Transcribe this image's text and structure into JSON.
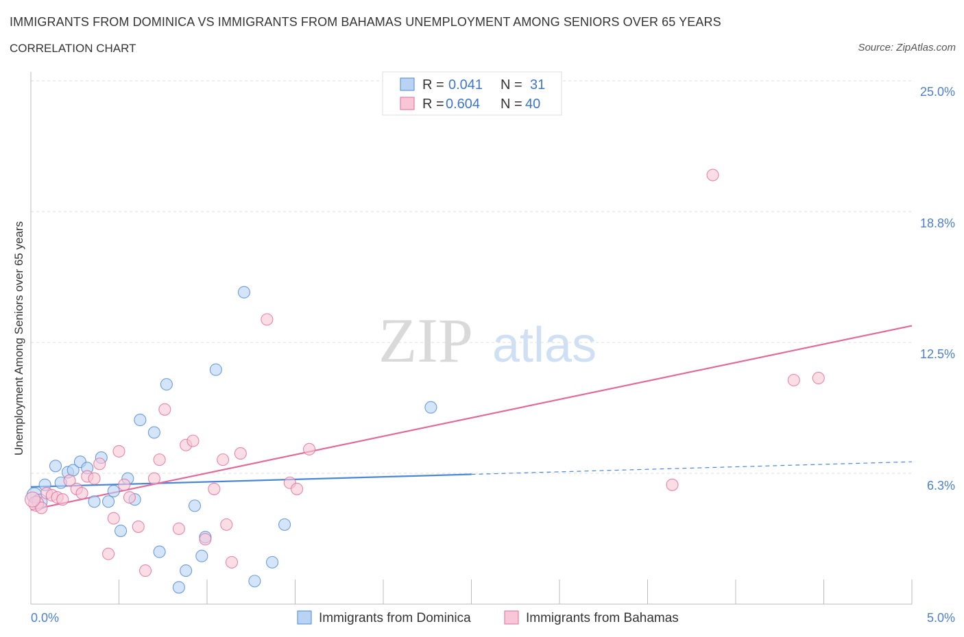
{
  "header": {
    "title": "IMMIGRANTS FROM DOMINICA VS IMMIGRANTS FROM BAHAMAS UNEMPLOYMENT AMONG SENIORS OVER 65 YEARS",
    "subtitle": "CORRELATION CHART",
    "source": "Source: ZipAtlas.com"
  },
  "watermark": {
    "zip": "ZIP",
    "atlas": "atlas"
  },
  "chart_data": {
    "type": "scatter",
    "title": "IMMIGRANTS FROM DOMINICA VS IMMIGRANTS FROM BAHAMAS UNEMPLOYMENT AMONG SENIORS OVER 65 YEARS",
    "xlabel": "",
    "ylabel": "Unemployment Among Seniors over 65 years",
    "xlim": [
      0,
      5
    ],
    "ylim": [
      0,
      25
    ],
    "x_tick_labels": [
      "0.0%",
      "5.0%"
    ],
    "y_tick_labels": [
      "6.3%",
      "12.5%",
      "18.8%",
      "25.0%"
    ],
    "y_ticks": [
      6.25,
      12.5,
      18.75,
      25.0
    ],
    "grid": true,
    "legend_position": "bottom",
    "stats_box": {
      "r_label": "R =",
      "n_label": "N =",
      "rows": [
        {
          "r": "0.041",
          "n": "31"
        },
        {
          "r": "0.604",
          "n": "40"
        }
      ]
    },
    "series": [
      {
        "name": "Immigrants from Dominica",
        "color": "#4a86d8",
        "fill": "#b9d3f5",
        "trend": {
          "x0": 0.0,
          "y0": 5.6,
          "x1": 2.5,
          "y1": 6.2,
          "dash_to_x": 5.0,
          "dash_to_y": 6.8
        },
        "points": [
          [
            0.02,
            5.2
          ],
          [
            0.08,
            5.7
          ],
          [
            0.14,
            6.6
          ],
          [
            0.17,
            5.8
          ],
          [
            0.21,
            6.3
          ],
          [
            0.24,
            6.4
          ],
          [
            0.28,
            6.8
          ],
          [
            0.32,
            6.5
          ],
          [
            0.36,
            4.9
          ],
          [
            0.4,
            7.0
          ],
          [
            0.44,
            4.9
          ],
          [
            0.47,
            5.4
          ],
          [
            0.51,
            3.5
          ],
          [
            0.55,
            6.0
          ],
          [
            0.59,
            5.0
          ],
          [
            0.62,
            8.8
          ],
          [
            0.7,
            8.2
          ],
          [
            0.73,
            2.5
          ],
          [
            0.77,
            10.5
          ],
          [
            0.84,
            0.8
          ],
          [
            0.88,
            1.6
          ],
          [
            0.93,
            4.7
          ],
          [
            0.97,
            2.3
          ],
          [
            0.99,
            3.2
          ],
          [
            1.05,
            11.2
          ],
          [
            1.21,
            14.9
          ],
          [
            1.27,
            1.1
          ],
          [
            1.37,
            2.0
          ],
          [
            1.44,
            3.8
          ],
          [
            2.27,
            9.4
          ],
          [
            0.05,
            4.9
          ]
        ]
      },
      {
        "name": "Immigrants from Bahamas",
        "color": "#e06b98",
        "fill": "#f8c6d6",
        "trend": {
          "x0": 0.0,
          "y0": 4.5,
          "x1": 5.0,
          "y1": 13.3
        },
        "points": [
          [
            0.03,
            4.8
          ],
          [
            0.06,
            4.6
          ],
          [
            0.09,
            5.3
          ],
          [
            0.12,
            5.2
          ],
          [
            0.15,
            5.1
          ],
          [
            0.18,
            5.0
          ],
          [
            0.22,
            5.9
          ],
          [
            0.26,
            5.5
          ],
          [
            0.29,
            5.3
          ],
          [
            0.32,
            6.1
          ],
          [
            0.36,
            6.0
          ],
          [
            0.39,
            6.7
          ],
          [
            0.44,
            2.4
          ],
          [
            0.47,
            4.1
          ],
          [
            0.5,
            7.3
          ],
          [
            0.53,
            5.7
          ],
          [
            0.56,
            5.1
          ],
          [
            0.61,
            3.7
          ],
          [
            0.65,
            1.6
          ],
          [
            0.7,
            6.0
          ],
          [
            0.73,
            6.9
          ],
          [
            0.76,
            9.3
          ],
          [
            0.84,
            3.6
          ],
          [
            0.88,
            7.6
          ],
          [
            0.92,
            7.8
          ],
          [
            0.99,
            3.1
          ],
          [
            1.04,
            5.5
          ],
          [
            1.09,
            6.9
          ],
          [
            1.11,
            3.8
          ],
          [
            1.14,
            2.0
          ],
          [
            1.19,
            7.2
          ],
          [
            1.34,
            13.6
          ],
          [
            1.47,
            5.8
          ],
          [
            1.51,
            5.5
          ],
          [
            1.58,
            7.4
          ],
          [
            3.64,
            5.7
          ],
          [
            3.87,
            20.5
          ],
          [
            4.33,
            10.7
          ],
          [
            4.47,
            10.8
          ],
          [
            0.01,
            5.0
          ]
        ]
      }
    ]
  }
}
